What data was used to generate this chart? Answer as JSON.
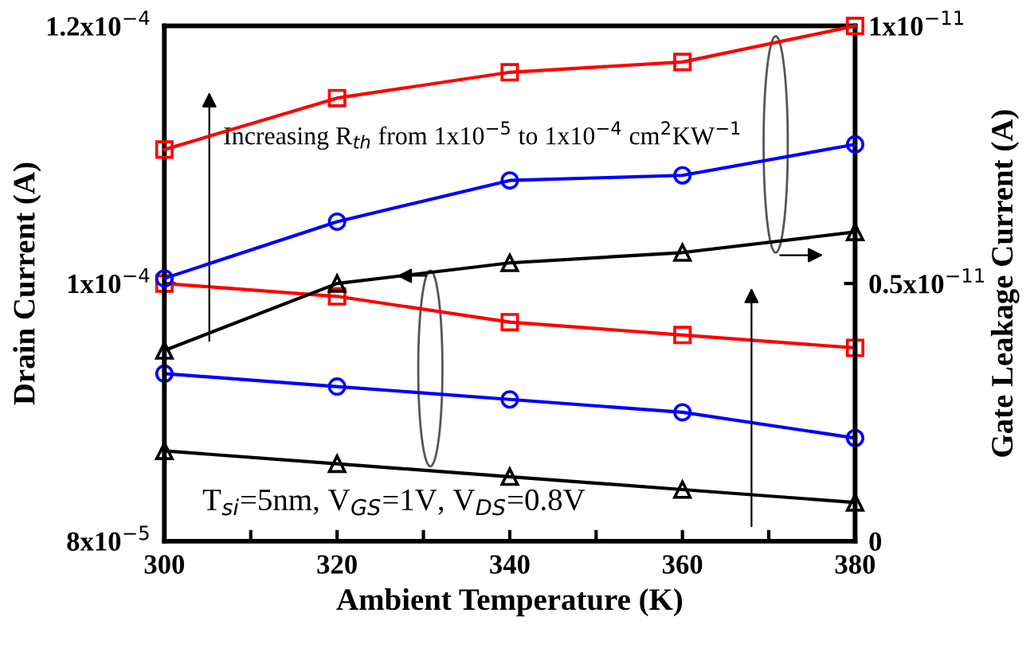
{
  "chart_data": {
    "type": "line",
    "xlabel": "Ambient Temperature (K)",
    "ylabel": "Drain Current (A)",
    "y2label": "Gate Leakage Current (A)",
    "x": [
      300,
      320,
      340,
      360,
      380
    ],
    "xlim": [
      300,
      380
    ],
    "xticks": [
      300,
      {
        "value": 310,
        "label": null
      },
      320,
      {
        "value": 330,
        "label": null
      },
      340,
      {
        "value": 350,
        "label": null
      },
      360,
      {
        "value": 370,
        "label": null
      },
      380
    ],
    "ylim": [
      8e-05,
      0.00012
    ],
    "yticks": [
      {
        "value": 8e-05,
        "label": "8x10$^{−5}$"
      },
      {
        "value": 0.0001,
        "label": "1x10$^{−4}$"
      },
      {
        "value": 0.00012,
        "label": "1.2x10$^{−4}$"
      }
    ],
    "y2lim": [
      0,
      1e-11
    ],
    "y2ticks": [
      {
        "value": 0,
        "label": "0"
      },
      {
        "value": 5e-12,
        "label": "0.5x10$^{−11}$"
      },
      {
        "value": 1e-11,
        "label": "1x10$^{−11}$"
      }
    ],
    "series": [
      {
        "color": "#ff0000",
        "marker": "square",
        "values": [
          0.0001,
          9.9e-05,
          9.7e-05,
          9.6e-05,
          9.5e-05
        ]
      },
      {
        "color": "#0000ff",
        "marker": "circle",
        "values": [
          9.3e-05,
          9.2e-05,
          9.1e-05,
          9e-05,
          8.8e-05
        ]
      },
      {
        "color": "#000000",
        "marker": "triangle",
        "values": [
          8.7e-05,
          8.6e-05,
          8.5e-05,
          8.4e-05,
          8.3e-05
        ]
      },
      {
        "color": "#ff0000",
        "marker": "square",
        "axis": "y2",
        "values": [
          7.6e-12,
          8.6e-12,
          9.1e-12,
          9.3e-12,
          1e-11
        ]
      },
      {
        "color": "#0000ff",
        "marker": "circle",
        "axis": "y2",
        "values": [
          5.1e-12,
          6.2e-12,
          7e-12,
          7.1e-12,
          7.7e-12
        ]
      },
      {
        "color": "#000000",
        "marker": "triangle",
        "axis": "y2",
        "values": [
          3.7e-12,
          5e-12,
          5.4e-12,
          5.6e-12,
          6e-12
        ]
      }
    ],
    "annotations": [
      "Increasing R$_{th}$ from 1x10$^{−5}$ to 1x10$^{−4}$ cm$^{2}$KW$^{−1}$",
      "T$_{si}$=5nm, V$_{GS}$=1V, V$_{DS}$=0.8V"
    ],
    "grid": false,
    "legend": false,
    "line_style": "solid"
  }
}
